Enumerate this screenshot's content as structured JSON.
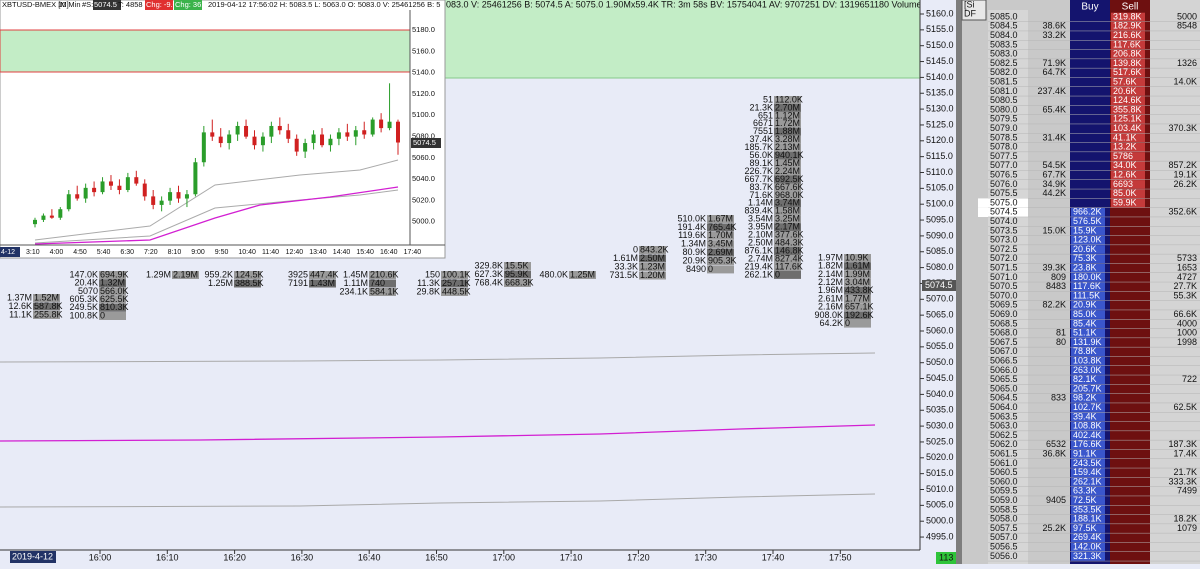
{
  "header": {
    "status_text": "083.0 V: 25461256 B: 5074.5 A: 5075.0 1.90Mx59.4K TR: 3m 58s BV: 15754041 AV: 9707251 DV: 1319651180 Volume Weighte"
  },
  "inset": {
    "fields": [
      "XBTUSD-BMEX [M]",
      "10 Min",
      "#S:",
      "5074.5",
      "T: 4858",
      "Chg: -9.0",
      "Chg: 36.0",
      "2019-04-12 17:56:02 H: 5083.5 L: 5063.0 O: 5083.0 V: 25461256 B: 5"
    ],
    "price_labels": [
      "5180.0",
      "5160.0",
      "5140.0",
      "5120.0",
      "5100.0",
      "5080.0",
      "5060.0",
      "5040.0",
      "5020.0",
      "5000.0"
    ],
    "last_price": "5074.5",
    "date": "4-12",
    "time_labels": [
      "3:10",
      "4:00",
      "4:50",
      "5:40",
      "6:30",
      "7:20",
      "8:10",
      "9:00",
      "9:50",
      "10:40",
      "11:40",
      "12:40",
      "13:40",
      "14:40",
      "15:40",
      "16:40",
      "17:40"
    ],
    "candles": [
      [
        4998,
        5004,
        4995,
        5002
      ],
      [
        5002,
        5008,
        5000,
        5006
      ],
      [
        5006,
        5012,
        5003,
        5004
      ],
      [
        5004,
        5014,
        5002,
        5012
      ],
      [
        5012,
        5030,
        5010,
        5026
      ],
      [
        5026,
        5034,
        5020,
        5022
      ],
      [
        5022,
        5036,
        5018,
        5032
      ],
      [
        5032,
        5038,
        5024,
        5028
      ],
      [
        5028,
        5042,
        5026,
        5038
      ],
      [
        5038,
        5044,
        5030,
        5034
      ],
      [
        5034,
        5040,
        5026,
        5030
      ],
      [
        5030,
        5046,
        5028,
        5042
      ],
      [
        5042,
        5048,
        5034,
        5036
      ],
      [
        5036,
        5040,
        5020,
        5024
      ],
      [
        5024,
        5030,
        5012,
        5016
      ],
      [
        5016,
        5024,
        5010,
        5020
      ],
      [
        5020,
        5032,
        5016,
        5028
      ],
      [
        5028,
        5034,
        5018,
        5022
      ],
      [
        5022,
        5030,
        5014,
        5026
      ],
      [
        5026,
        5060,
        5024,
        5056
      ],
      [
        5056,
        5090,
        5052,
        5084
      ],
      [
        5084,
        5096,
        5076,
        5080
      ],
      [
        5080,
        5088,
        5070,
        5074
      ],
      [
        5074,
        5086,
        5068,
        5082
      ],
      [
        5082,
        5094,
        5076,
        5090
      ],
      [
        5090,
        5096,
        5078,
        5080
      ],
      [
        5080,
        5086,
        5068,
        5072
      ],
      [
        5072,
        5084,
        5066,
        5080
      ],
      [
        5080,
        5094,
        5074,
        5090
      ],
      [
        5090,
        5098,
        5082,
        5086
      ],
      [
        5086,
        5092,
        5074,
        5078
      ],
      [
        5078,
        5082,
        5062,
        5066
      ],
      [
        5066,
        5078,
        5060,
        5074
      ],
      [
        5074,
        5086,
        5068,
        5082
      ],
      [
        5082,
        5088,
        5070,
        5072
      ],
      [
        5072,
        5082,
        5066,
        5078
      ],
      [
        5078,
        5088,
        5072,
        5084
      ],
      [
        5084,
        5092,
        5076,
        5080
      ],
      [
        5080,
        5090,
        5072,
        5086
      ],
      [
        5086,
        5094,
        5078,
        5082
      ],
      [
        5082,
        5098,
        5080,
        5096
      ],
      [
        5096,
        5102,
        5084,
        5088
      ],
      [
        5088,
        5130,
        5086,
        5094
      ],
      [
        5094,
        5096,
        5063,
        5074.5
      ]
    ]
  },
  "price_axis": {
    "labels": [
      "5160.0",
      "5155.0",
      "5150.0",
      "5145.0",
      "5140.0",
      "5135.0",
      "5130.0",
      "5125.0",
      "5120.0",
      "5115.0",
      "5110.0",
      "5105.0",
      "5100.0",
      "5095.0",
      "5090.0",
      "5085.0",
      "5080.0",
      "5075.0",
      "5070.0",
      "5065.0",
      "5060.0",
      "5055.0",
      "5050.0",
      "5045.0",
      "5040.0",
      "5035.0",
      "5030.0",
      "5025.0",
      "5020.0",
      "5015.0",
      "5010.0",
      "5005.0",
      "5000.0",
      "4995.0"
    ],
    "current": "5074.5",
    "counter": "113"
  },
  "time_axis": {
    "date": "2019-4-12",
    "labels": [
      "16:00",
      "16:10",
      "16:20",
      "16:30",
      "16:40",
      "16:50",
      "17:00",
      "17:10",
      "17:20",
      "17:30",
      "17:40",
      "17:50"
    ]
  },
  "clusters": [
    [
      [
        "1.37M",
        "1.52M"
      ],
      [
        "12.6K",
        "587.8K"
      ],
      [
        "11.1K",
        "255.8K"
      ]
    ],
    [
      [
        "147.0K",
        "694.9K"
      ],
      [
        "20.4K",
        "1.32M"
      ],
      [
        "5070",
        "566.0K"
      ],
      [
        "605.3K",
        "625.5K"
      ],
      [
        "249.5K",
        "810.3K"
      ],
      [
        "100.8K",
        "0"
      ]
    ],
    [
      [
        "1.29M",
        "2.19M"
      ]
    ],
    [
      [
        "959.2K",
        "124.5K"
      ],
      [
        "1.25M",
        "388.5K"
      ]
    ],
    [
      [
        "3925",
        "447.4K"
      ],
      [
        "7191",
        "1.43M"
      ]
    ],
    [
      [
        "1.45M",
        "210.6K"
      ],
      [
        "1.11M",
        "740"
      ],
      [
        "234.1K",
        "584.1K"
      ]
    ],
    [
      [
        "150",
        "100.1K"
      ],
      [
        "11.3K",
        "257.1K"
      ],
      [
        "29.8K",
        "448.5K"
      ]
    ],
    [
      [
        "329.8K",
        "15.5K"
      ],
      [
        "627.3K",
        "95.9K"
      ],
      [
        "768.4K",
        "668.3K"
      ]
    ],
    [
      [
        "480.0K",
        "1.25M"
      ]
    ],
    [
      [
        "0",
        "843.2K"
      ],
      [
        "1.61M",
        "2.50M"
      ],
      [
        "33.3K",
        "1.23M"
      ],
      [
        "731.5K",
        "1.20M"
      ]
    ],
    [
      [
        "510.0K",
        "1.67M"
      ],
      [
        "191.4K",
        "765.4K"
      ],
      [
        "119.6K",
        "1.70M"
      ],
      [
        "1.34M",
        "3.45M"
      ],
      [
        "80.9K",
        "2.69M"
      ],
      [
        "20.9K",
        "905.3K"
      ],
      [
        "8490",
        "0"
      ]
    ],
    [
      [
        "51",
        "112.0K"
      ],
      [
        "21.3K",
        "2.70M"
      ],
      [
        "651",
        "1.12M"
      ],
      [
        "6671",
        "1.72M"
      ],
      [
        "7551",
        "1.88M"
      ],
      [
        "37.4K",
        "3.28M"
      ],
      [
        "185.7K",
        "2.13M"
      ],
      [
        "56.0K",
        "940.1K"
      ],
      [
        "89.1K",
        "1.45M"
      ],
      [
        "226.7K",
        "2.24M"
      ],
      [
        "667.7K",
        "692.5K"
      ],
      [
        "83.7K",
        "667.6K"
      ],
      [
        "71.6K",
        "968.0K"
      ],
      [
        "1.14M",
        "3.74M"
      ],
      [
        "839.4K",
        "1.58M"
      ],
      [
        "3.54M",
        "3.25M"
      ],
      [
        "3.95M",
        "2.17M"
      ],
      [
        "2.10M",
        "377.6K"
      ],
      [
        "2.50M",
        "484.3K"
      ],
      [
        "876.1K",
        "146.8K"
      ],
      [
        "2.74M",
        "827.4K"
      ],
      [
        "219.4K",
        "117.6K"
      ],
      [
        "262.1K",
        "0"
      ]
    ],
    [
      [
        "1.97M",
        "10.9K"
      ],
      [
        "1.82M",
        "1.61M"
      ],
      [
        "2.14M",
        "1.99M"
      ],
      [
        "2.12M",
        "3.04M"
      ],
      [
        "1.96M",
        "433.8K"
      ],
      [
        "2.61M",
        "1.77M"
      ],
      [
        "2.16M",
        "657.1K"
      ],
      [
        "908.0K",
        "192.6K"
      ],
      [
        "64.2K",
        "0"
      ]
    ]
  ],
  "ladder": {
    "corner": [
      "[Si",
      "DF"
    ],
    "headers": [
      "Buy",
      "Sell"
    ],
    "rows": [
      [
        "5085.0",
        null,
        null,
        "319.8K",
        "5000"
      ],
      [
        "5084.5",
        "38.6K",
        null,
        "182.9K",
        "8548"
      ],
      [
        "5084.0",
        "33.2K",
        null,
        "216.6K",
        null
      ],
      [
        "5083.5",
        null,
        null,
        "117.6K",
        null
      ],
      [
        "5083.0",
        null,
        null,
        "206.8K",
        null
      ],
      [
        "5082.5",
        "71.9K",
        null,
        "139.8K",
        "1326"
      ],
      [
        "5082.0",
        "64.7K",
        null,
        "517.6K",
        null
      ],
      [
        "5081.5",
        null,
        null,
        "57.6K",
        "14.0K"
      ],
      [
        "5081.0",
        "237.4K",
        null,
        "20.6K",
        null
      ],
      [
        "5080.5",
        null,
        null,
        "124.6K",
        null
      ],
      [
        "5080.0",
        "65.4K",
        null,
        "355.8K",
        null
      ],
      [
        "5079.5",
        null,
        null,
        "125.1K",
        null
      ],
      [
        "5079.0",
        null,
        null,
        "103.4K",
        "370.3K"
      ],
      [
        "5078.5",
        "31.4K",
        null,
        "41.1K",
        null
      ],
      [
        "5078.0",
        null,
        null,
        "13.2K",
        null
      ],
      [
        "5077.5",
        null,
        null,
        "5786",
        null
      ],
      [
        "5077.0",
        "54.5K",
        null,
        "34.0K",
        "857.2K"
      ],
      [
        "5076.5",
        "67.7K",
        null,
        "12.6K",
        "19.1K"
      ],
      [
        "5076.0",
        "34.9K",
        null,
        "6693",
        "26.2K"
      ],
      [
        "5075.5",
        "44.2K",
        null,
        "85.0K",
        null
      ],
      [
        "5075.0",
        null,
        null,
        "59.9K",
        null
      ],
      [
        "5074.5",
        null,
        "966.2K",
        null,
        "352.6K"
      ],
      [
        "5074.0",
        null,
        "576.5K",
        null,
        null
      ],
      [
        "5073.5",
        "15.0K",
        "15.9K",
        null,
        null
      ],
      [
        "5073.0",
        null,
        "123.0K",
        null,
        null
      ],
      [
        "5072.5",
        null,
        "20.6K",
        null,
        null
      ],
      [
        "5072.0",
        null,
        "75.3K",
        null,
        "5733"
      ],
      [
        "5071.5",
        "39.3K",
        "23.8K",
        null,
        "1653"
      ],
      [
        "5071.0",
        "809",
        "180.0K",
        null,
        "4727"
      ],
      [
        "5070.5",
        "8483",
        "117.6K",
        null,
        "27.7K"
      ],
      [
        "5070.0",
        null,
        "111.5K",
        null,
        "55.3K"
      ],
      [
        "5069.5",
        "82.2K",
        "20.9K",
        null,
        null
      ],
      [
        "5069.0",
        null,
        "85.0K",
        null,
        "66.6K"
      ],
      [
        "5068.5",
        null,
        "85.4K",
        null,
        "4000"
      ],
      [
        "5068.0",
        "81",
        "51.1K",
        null,
        "1000"
      ],
      [
        "5067.5",
        "80",
        "131.9K",
        null,
        "1998"
      ],
      [
        "5067.0",
        null,
        "78.8K",
        null,
        null
      ],
      [
        "5066.5",
        null,
        "103.8K",
        null,
        null
      ],
      [
        "5066.0",
        null,
        "263.0K",
        null,
        null
      ],
      [
        "5065.5",
        null,
        "82.1K",
        null,
        "722"
      ],
      [
        "5065.0",
        null,
        "205.7K",
        null,
        null
      ],
      [
        "5064.5",
        "833",
        "98.2K",
        null,
        null
      ],
      [
        "5064.0",
        null,
        "102.7K",
        null,
        "62.5K"
      ],
      [
        "5063.5",
        null,
        "39.4K",
        null,
        null
      ],
      [
        "5063.0",
        null,
        "108.8K",
        null,
        null
      ],
      [
        "5062.5",
        null,
        "402.4K",
        null,
        null
      ],
      [
        "5062.0",
        "6532",
        "176.6K",
        null,
        "187.3K"
      ],
      [
        "5061.5",
        "36.8K",
        "91.1K",
        null,
        "17.4K"
      ],
      [
        "5061.0",
        null,
        "243.5K",
        null,
        null
      ],
      [
        "5060.5",
        null,
        "159.4K",
        null,
        "21.7K"
      ],
      [
        "5060.0",
        null,
        "262.1K",
        null,
        "333.3K"
      ],
      [
        "5059.5",
        null,
        "63.3K",
        null,
        "7499"
      ],
      [
        "5059.0",
        "9405",
        "72.5K",
        null,
        null
      ],
      [
        "5058.5",
        null,
        "353.5K",
        null,
        null
      ],
      [
        "5058.0",
        null,
        "188.1K",
        null,
        "18.2K"
      ],
      [
        "5057.5",
        "25.2K",
        "97.5K",
        null,
        "1079"
      ],
      [
        "5057.0",
        null,
        "269.4K",
        null,
        null
      ],
      [
        "5056.5",
        null,
        "142.0K",
        null,
        null
      ],
      [
        "5056.0",
        null,
        "321.3K",
        null,
        null
      ]
    ]
  }
}
